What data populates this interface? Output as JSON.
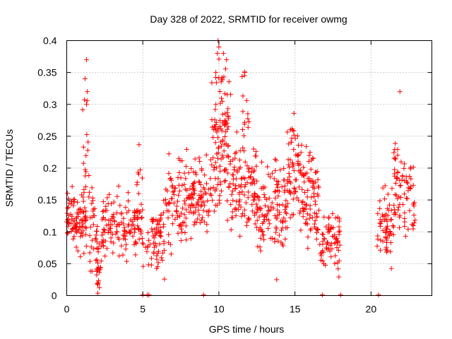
{
  "chart_data": {
    "type": "scatter",
    "title": "Day 328 of 2022, SRMTID for receiver owmg",
    "xlabel": "GPS time / hours",
    "ylabel": "SRMTID / TECUs",
    "xlim": [
      0,
      24
    ],
    "ylim": [
      0,
      0.4
    ],
    "x_ticks": [
      "0",
      "5",
      "10",
      "15",
      "20"
    ],
    "y_ticks": [
      "0",
      "0.05",
      "0.1",
      "0.15",
      "0.2",
      "0.25",
      "0.3",
      "0.35",
      "0.4"
    ],
    "x_tick_values": [
      0,
      5,
      10,
      15,
      20
    ],
    "y_tick_values": [
      0,
      0.05,
      0.1,
      0.15,
      0.2,
      0.25,
      0.3,
      0.35,
      0.4
    ],
    "grid": true,
    "marker": "+",
    "color": "#ff0000",
    "segments": [
      {
        "start": 0.0,
        "end": 1.3,
        "base": 0.12,
        "amp": 0.035,
        "count": 90
      },
      {
        "start": 1.0,
        "end": 1.5,
        "base": 0.2,
        "amp": 0.12,
        "count": 25
      },
      {
        "start": 1.5,
        "end": 2.0,
        "base": 0.1,
        "amp": 0.05,
        "count": 30
      },
      {
        "start": 1.95,
        "end": 2.3,
        "base": 0.04,
        "amp": 0.04,
        "count": 25
      },
      {
        "start": 2.3,
        "end": 5.0,
        "base": 0.11,
        "amp": 0.035,
        "count": 140
      },
      {
        "start": 4.6,
        "end": 5.0,
        "base": 0.2,
        "amp": 0.04,
        "count": 8
      },
      {
        "start": 5.0,
        "end": 5.5,
        "base": 0.07,
        "amp": 0.03,
        "count": 10
      },
      {
        "start": 5.5,
        "end": 6.5,
        "base": 0.09,
        "amp": 0.04,
        "count": 60
      },
      {
        "start": 6.5,
        "end": 9.5,
        "base": 0.15,
        "amp": 0.05,
        "count": 170
      },
      {
        "start": 9.5,
        "end": 10.8,
        "base": 0.24,
        "amp": 0.09,
        "count": 120
      },
      {
        "start": 10.8,
        "end": 12.5,
        "base": 0.17,
        "amp": 0.06,
        "count": 110
      },
      {
        "start": 11.5,
        "end": 12.0,
        "base": 0.3,
        "amp": 0.05,
        "count": 12
      },
      {
        "start": 12.5,
        "end": 14.5,
        "base": 0.14,
        "amp": 0.05,
        "count": 120
      },
      {
        "start": 14.5,
        "end": 15.5,
        "base": 0.2,
        "amp": 0.07,
        "count": 70
      },
      {
        "start": 15.5,
        "end": 16.6,
        "base": 0.15,
        "amp": 0.06,
        "count": 80
      },
      {
        "start": 16.6,
        "end": 17.2,
        "base": 0.08,
        "amp": 0.03,
        "count": 25
      },
      {
        "start": 17.2,
        "end": 18.0,
        "base": 0.09,
        "amp": 0.04,
        "count": 45
      },
      {
        "start": 20.4,
        "end": 21.5,
        "base": 0.11,
        "amp": 0.04,
        "count": 60
      },
      {
        "start": 21.5,
        "end": 22.2,
        "base": 0.18,
        "amp": 0.06,
        "count": 45
      },
      {
        "start": 22.2,
        "end": 22.9,
        "base": 0.15,
        "amp": 0.05,
        "count": 35
      }
    ],
    "notable_points": [
      {
        "x": 1.3,
        "y": 0.37
      },
      {
        "x": 1.35,
        "y": 0.32
      },
      {
        "x": 1.3,
        "y": 0.3
      },
      {
        "x": 9.95,
        "y": 0.4
      },
      {
        "x": 10.0,
        "y": 0.39
      },
      {
        "x": 9.9,
        "y": 0.38
      },
      {
        "x": 10.3,
        "y": 0.38
      },
      {
        "x": 10.5,
        "y": 0.37
      },
      {
        "x": 9.8,
        "y": 0.35
      },
      {
        "x": 11.7,
        "y": 0.35
      },
      {
        "x": 21.9,
        "y": 0.32
      },
      {
        "x": 13.8,
        "y": 0.025
      }
    ],
    "zero_points": [
      5.0,
      5.3,
      5.4,
      9.0,
      16.8,
      18.0,
      20.5
    ]
  }
}
